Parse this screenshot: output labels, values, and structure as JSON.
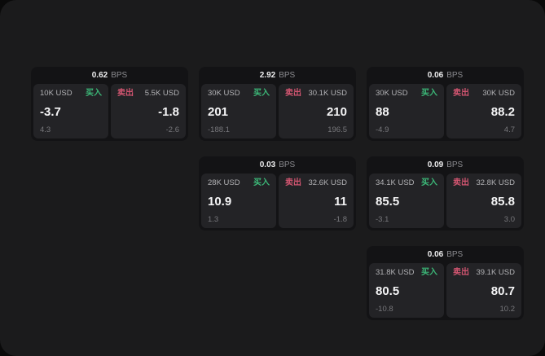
{
  "labels": {
    "bps": "BPS",
    "buy": "买入",
    "sell": "卖出"
  },
  "colors": {
    "page_bg": "#1b1b1c",
    "card_bg": "#131315",
    "tile_bg": "#232326",
    "buy_green": "#3cb878",
    "sell_red": "#d15570",
    "main_text": "#f5f5f6",
    "muted_text": "#8b8b8f"
  },
  "cards": [
    {
      "bps": "0.62",
      "buy": {
        "amount": "10K USD",
        "main": "-3.7",
        "sub": "4.3"
      },
      "sell": {
        "amount": "5.5K USD",
        "main": "-1.8",
        "sub": "-2.6"
      }
    },
    {
      "bps": "2.92",
      "buy": {
        "amount": "30K USD",
        "main": "201",
        "sub": "-188.1"
      },
      "sell": {
        "amount": "30.1K USD",
        "main": "210",
        "sub": "196.5"
      }
    },
    {
      "bps": "0.06",
      "buy": {
        "amount": "30K USD",
        "main": "88",
        "sub": "-4.9"
      },
      "sell": {
        "amount": "30K USD",
        "main": "88.2",
        "sub": "4.7"
      }
    },
    {
      "bps": "0.03",
      "buy": {
        "amount": "28K USD",
        "main": "10.9",
        "sub": "1.3"
      },
      "sell": {
        "amount": "32.6K USD",
        "main": "11",
        "sub": "-1.8"
      }
    },
    {
      "bps": "0.09",
      "buy": {
        "amount": "34.1K USD",
        "main": "85.5",
        "sub": "-3.1"
      },
      "sell": {
        "amount": "32.8K USD",
        "main": "85.8",
        "sub": "3.0"
      }
    },
    {
      "bps": "0.06",
      "buy": {
        "amount": "31.8K USD",
        "main": "80.5",
        "sub": "-10.8"
      },
      "sell": {
        "amount": "39.1K USD",
        "main": "80.7",
        "sub": "10.2"
      }
    }
  ]
}
